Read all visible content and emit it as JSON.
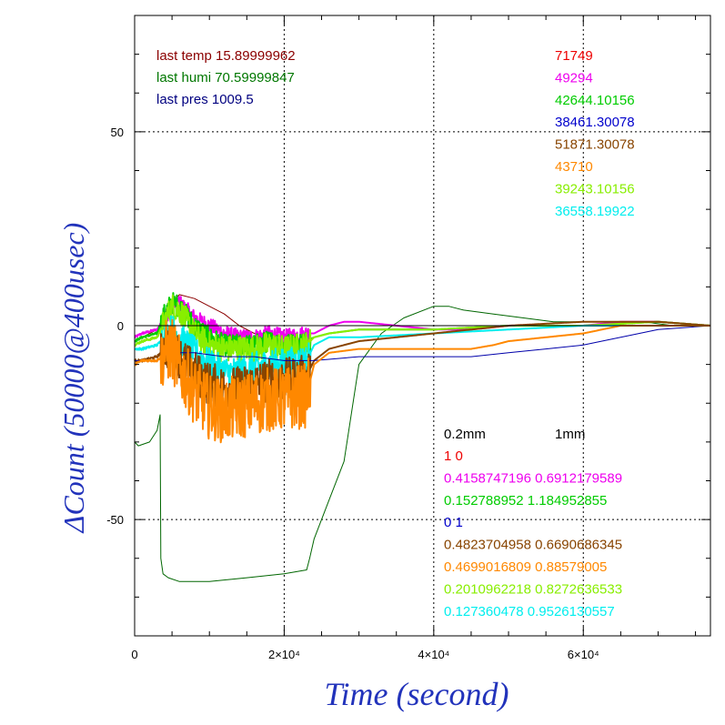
{
  "chart_data": {
    "type": "line",
    "title": "",
    "xlabel": "Time (second)",
    "ylabel": "ΔCount (50000@400usec)",
    "xlim": [
      0,
      77000
    ],
    "ylim": [
      -80,
      80
    ],
    "grid": true,
    "zero_line": true,
    "x_ticks": [
      {
        "value": 0,
        "label": "0"
      },
      {
        "value": 20000,
        "label": "2×10⁴"
      },
      {
        "value": 40000,
        "label": "4×10⁴"
      },
      {
        "value": 60000,
        "label": "6×10⁴"
      }
    ],
    "y_ticks": [
      {
        "value": 50,
        "label": "50"
      },
      {
        "value": 0,
        "label": "0"
      },
      {
        "value": -50,
        "label": "-50"
      }
    ],
    "axis_color": "#000000",
    "label_color": "#2233bb",
    "info": [
      {
        "text": "last temp 15.89999962",
        "color": "#8b0000"
      },
      {
        "text": "last humi 70.59999847",
        "color": "#007700"
      },
      {
        "text": "last pres 1009.5",
        "color": "#000080"
      }
    ],
    "totals": [
      {
        "text": "71749",
        "color": "#ee0000"
      },
      {
        "text": "49294",
        "color": "#ee00ee"
      },
      {
        "text": "42644.10156",
        "color": "#00cc00"
      },
      {
        "text": "38461.30078",
        "color": "#0000cc"
      },
      {
        "text": "51871.30078",
        "color": "#884400"
      },
      {
        "text": "43710",
        "color": "#ff8800"
      },
      {
        "text": "39243.10156",
        "color": "#88ee00"
      },
      {
        "text": "36558.19922",
        "color": "#00eeee"
      }
    ],
    "legend_header": {
      "col1": "0.2mm",
      "col2": "1mm",
      "color": "#000000"
    },
    "legend": [
      {
        "text": "1 0",
        "color": "#ee0000"
      },
      {
        "text": "0.4158747196 0.6912179589",
        "color": "#ee00ee"
      },
      {
        "text": "0.152788952 1.184952855",
        "color": "#00cc00"
      },
      {
        "text": "0 1",
        "color": "#0000cc"
      },
      {
        "text": "0.4823704958 0.6690686345",
        "color": "#884400"
      },
      {
        "text": "0.4699016809 0.88579005",
        "color": "#ff8800"
      },
      {
        "text": "0.2010962218 0.8272636533",
        "color": "#88ee00"
      },
      {
        "text": "0.127360478 0.9526130557",
        "color": "#00eeee"
      }
    ],
    "series": [
      {
        "color": "#8b0000",
        "width": 1,
        "noise": 0,
        "x": [
          0,
          1000,
          3000,
          5000,
          6000,
          8000,
          10000,
          12000,
          14000,
          16000,
          18000,
          20000,
          23000,
          24000,
          26000,
          30000,
          40000,
          50000,
          60000,
          70000,
          77000
        ],
        "y": [
          -4,
          -3,
          -1,
          6,
          8,
          7,
          5,
          3,
          0,
          -2,
          -2,
          -3,
          -4,
          -3,
          -2,
          -1,
          -1,
          0,
          0,
          1,
          0
        ]
      },
      {
        "color": "#006600",
        "width": 1,
        "noise": 0,
        "x": [
          0,
          500,
          2000,
          3000,
          3400,
          3500,
          3800,
          4500,
          6000,
          10000,
          15000,
          20000,
          23000,
          23400,
          24000,
          26000,
          28000,
          30000,
          33000,
          36000,
          40000,
          42000,
          44000,
          48000,
          52000,
          56000,
          60000,
          64000,
          68000,
          72000,
          77000
        ],
        "y": [
          -30,
          -31,
          -30,
          -27,
          -23,
          -60,
          -64,
          -65,
          -66,
          -66,
          -65,
          -64,
          -63,
          -60,
          -55,
          -45,
          -35,
          -10,
          -2,
          2,
          5,
          5,
          4,
          3,
          2,
          1,
          1,
          1,
          1,
          0,
          0
        ]
      },
      {
        "color": "#ee00ee",
        "width": 2,
        "noise": 3,
        "x": [
          0,
          1000,
          3000,
          4000,
          5000,
          6000,
          8000,
          10000,
          12000,
          14000,
          16000,
          18000,
          20000,
          23000,
          24000,
          26000,
          28000,
          30000,
          35000,
          40000,
          45000,
          50000,
          55000,
          60000,
          65000,
          70000,
          77000
        ],
        "y": [
          -3,
          -2,
          -1,
          2,
          5,
          6,
          2,
          0,
          -2,
          -3,
          -3,
          -2,
          -3,
          -2,
          -2,
          0,
          1,
          1,
          0,
          -1,
          -1,
          0,
          0,
          0,
          1,
          1,
          0
        ]
      },
      {
        "color": "#00cc00",
        "width": 2,
        "noise": 4,
        "x": [
          0,
          1000,
          3000,
          4000,
          5000,
          6000,
          8000,
          10000,
          12000,
          14000,
          16000,
          18000,
          20000,
          23000,
          24000,
          26000,
          30000,
          40000,
          50000,
          60000,
          70000,
          77000
        ],
        "y": [
          -4,
          -3,
          -2,
          3,
          6,
          5,
          0,
          -3,
          -5,
          -5,
          -5,
          -4,
          -5,
          -4,
          -3,
          -2,
          -1,
          -1,
          0,
          0,
          1,
          0
        ]
      },
      {
        "color": "#88ee00",
        "width": 2,
        "noise": 5,
        "x": [
          0,
          1000,
          3000,
          4000,
          5000,
          6000,
          8000,
          10000,
          12000,
          14000,
          16000,
          18000,
          20000,
          23000,
          24000,
          26000,
          30000,
          40000,
          50000,
          60000,
          70000,
          77000
        ],
        "y": [
          -5,
          -4,
          -3,
          1,
          5,
          4,
          -2,
          -5,
          -6,
          -6,
          -6,
          -5,
          -6,
          -5,
          -3,
          -2,
          -1,
          -1,
          0,
          0,
          1,
          0
        ]
      },
      {
        "color": "#00eeee",
        "width": 2,
        "noise": 6,
        "x": [
          0,
          1000,
          3000,
          4000,
          5000,
          6000,
          8000,
          10000,
          12000,
          14000,
          16000,
          18000,
          20000,
          23000,
          24000,
          26000,
          30000,
          40000,
          50000,
          60000,
          70000,
          77000
        ],
        "y": [
          -6,
          -6,
          -5,
          -3,
          -1,
          -3,
          -7,
          -10,
          -12,
          -12,
          -11,
          -10,
          -10,
          -9,
          -5,
          -3,
          -3,
          -2,
          -1,
          0,
          0,
          0
        ]
      },
      {
        "color": "#884400",
        "width": 2,
        "noise": 8,
        "x": [
          0,
          1000,
          3000,
          4000,
          5000,
          6000,
          8000,
          10000,
          12000,
          14000,
          16000,
          18000,
          20000,
          23000,
          24000,
          26000,
          30000,
          40000,
          50000,
          60000,
          70000,
          77000
        ],
        "y": [
          -9,
          -9,
          -8,
          -6,
          -5,
          -8,
          -12,
          -15,
          -16,
          -16,
          -15,
          -14,
          -14,
          -13,
          -9,
          -6,
          -4,
          -2,
          0,
          1,
          1,
          0
        ]
      },
      {
        "color": "#0000aa",
        "width": 1,
        "noise": 0,
        "x": [
          0,
          1000,
          3000,
          4000,
          5000,
          8000,
          12000,
          16000,
          20000,
          23000,
          24000,
          30000,
          40000,
          45000,
          50000,
          55000,
          60000,
          65000,
          70000,
          77000
        ],
        "y": [
          -9,
          -9,
          -9,
          -8,
          -7,
          -7,
          -8,
          -8,
          -9,
          -9,
          -9,
          -8,
          -8,
          -8,
          -7,
          -6,
          -5,
          -3,
          -1,
          0
        ]
      },
      {
        "color": "#ff8800",
        "width": 2,
        "noise": 12,
        "x": [
          0,
          1000,
          3000,
          4000,
          5000,
          6000,
          8000,
          10000,
          12000,
          14000,
          16000,
          18000,
          20000,
          23000,
          24000,
          26000,
          30000,
          35000,
          40000,
          45000,
          48000,
          50000,
          55000,
          60000,
          65000,
          70000,
          77000
        ],
        "y": [
          -10,
          -9,
          -9,
          -7,
          -6,
          -11,
          -17,
          -21,
          -22,
          -21,
          -20,
          -19,
          -19,
          -18,
          -10,
          -7,
          -6,
          -6,
          -6,
          -6,
          -5,
          -4,
          -3,
          -2,
          0,
          0,
          0
        ]
      }
    ]
  }
}
